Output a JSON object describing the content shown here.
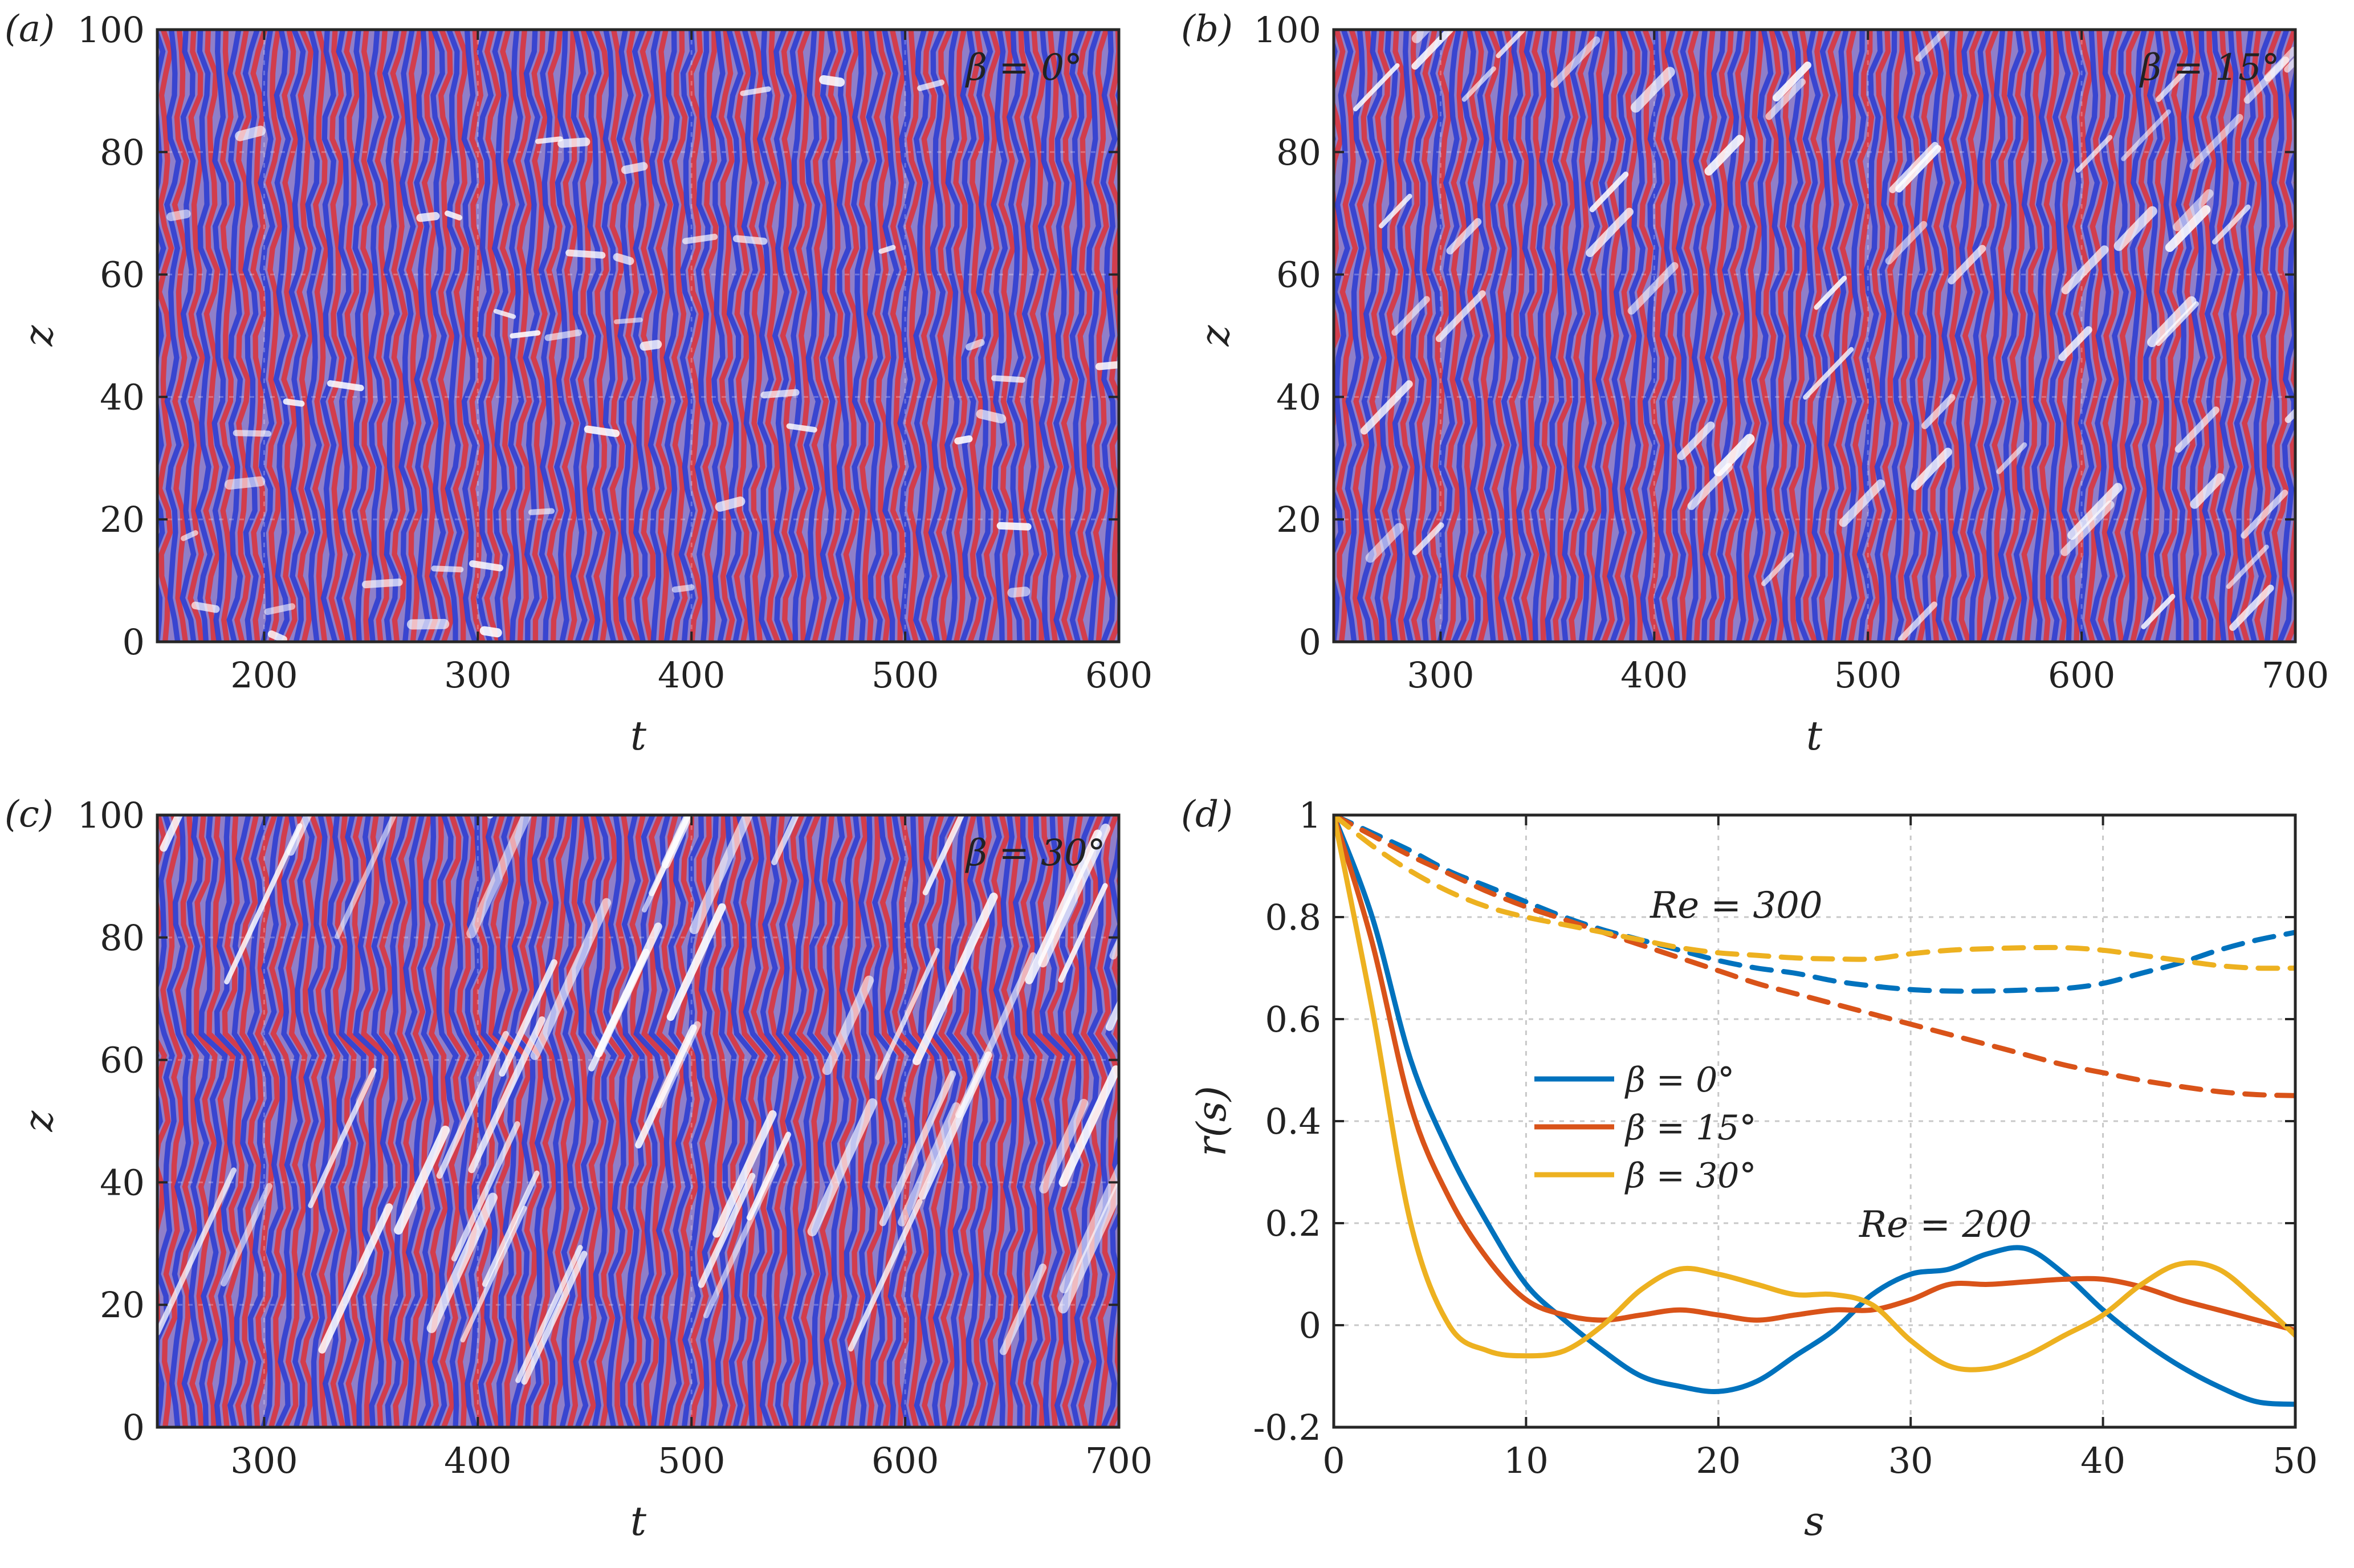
{
  "chart_data": [
    {
      "panel": "(a)",
      "type": "heatmap",
      "annotation": "β = 0°",
      "xlabel": "t",
      "ylabel": "z",
      "xlim": [
        150,
        600
      ],
      "ylim": [
        0,
        100
      ],
      "xticks": [
        200,
        300,
        400,
        500,
        600
      ],
      "yticks": [
        0,
        20,
        40,
        60,
        80,
        100
      ],
      "pattern": {
        "beta_deg": 0,
        "stripe_period": 7.3,
        "t0": 150
      }
    },
    {
      "panel": "(b)",
      "type": "heatmap",
      "annotation": "β = 15°",
      "xlabel": "t",
      "ylabel": "z",
      "xlim": [
        250,
        700
      ],
      "ylim": [
        0,
        100
      ],
      "xticks": [
        300,
        400,
        500,
        600,
        700
      ],
      "yticks": [
        0,
        20,
        40,
        60,
        80,
        100
      ],
      "pattern": {
        "beta_deg": 15,
        "stripe_period": 7.3,
        "t0": 250
      }
    },
    {
      "panel": "(c)",
      "type": "heatmap",
      "annotation": "β = 30°",
      "xlabel": "t",
      "ylabel": "z",
      "xlim": [
        250,
        700
      ],
      "ylim": [
        0,
        100
      ],
      "xticks": [
        300,
        400,
        500,
        600,
        700
      ],
      "yticks": [
        0,
        20,
        40,
        60,
        80,
        100
      ],
      "pattern": {
        "beta_deg": 30,
        "stripe_period": 7.3,
        "t0": 250
      }
    },
    {
      "panel": "(d)",
      "type": "line",
      "xlabel": "s",
      "ylabel": "r(s)",
      "xlim": [
        0,
        50
      ],
      "ylim": [
        -0.2,
        1
      ],
      "xticks": [
        0,
        10,
        20,
        30,
        40,
        50
      ],
      "yticks": [
        -0.2,
        0,
        0.2,
        0.4,
        0.6,
        0.8,
        1
      ],
      "grid": true,
      "annotations": [
        "Re = 300",
        "Re = 200"
      ],
      "legend": {
        "location": "center-left",
        "entries": [
          "β = 0°",
          "β = 15°",
          "β = 30°"
        ]
      },
      "colors": [
        "#0072BD",
        "#D95319",
        "#EDB120"
      ],
      "series": [
        {
          "name": "β = 0°",
          "Re": 200,
          "style": "solid",
          "color": "#0072BD",
          "x": [
            0,
            2,
            4,
            6,
            8,
            10,
            12,
            14,
            16,
            18,
            20,
            22,
            24,
            26,
            28,
            30,
            32,
            34,
            36,
            38,
            40,
            42,
            44,
            46,
            48,
            50
          ],
          "y": [
            1,
            0.8,
            0.52,
            0.34,
            0.2,
            0.08,
            0.01,
            -0.05,
            -0.1,
            -0.12,
            -0.13,
            -0.11,
            -0.06,
            -0.01,
            0.06,
            0.1,
            0.11,
            0.14,
            0.15,
            0.1,
            0.03,
            -0.03,
            -0.08,
            -0.12,
            -0.15,
            -0.155
          ]
        },
        {
          "name": "β = 15°",
          "Re": 200,
          "style": "solid",
          "color": "#D95319",
          "x": [
            0,
            2,
            4,
            6,
            8,
            10,
            12,
            14,
            16,
            18,
            20,
            22,
            24,
            26,
            28,
            30,
            32,
            34,
            36,
            38,
            40,
            42,
            44,
            46,
            48,
            50
          ],
          "y": [
            1,
            0.75,
            0.43,
            0.25,
            0.13,
            0.05,
            0.02,
            0.01,
            0.02,
            0.03,
            0.02,
            0.01,
            0.02,
            0.03,
            0.03,
            0.05,
            0.08,
            0.08,
            0.085,
            0.09,
            0.09,
            0.075,
            0.05,
            0.03,
            0.01,
            -0.01
          ]
        },
        {
          "name": "β = 30°",
          "Re": 200,
          "style": "solid",
          "color": "#EDB120",
          "x": [
            0,
            2,
            4,
            6,
            8,
            10,
            12,
            14,
            16,
            18,
            20,
            22,
            24,
            26,
            28,
            30,
            32,
            34,
            36,
            38,
            40,
            42,
            44,
            46,
            48,
            50
          ],
          "y": [
            1,
            0.62,
            0.2,
            0.0,
            -0.05,
            -0.06,
            -0.05,
            0.0,
            0.07,
            0.11,
            0.1,
            0.08,
            0.06,
            0.06,
            0.04,
            -0.03,
            -0.08,
            -0.085,
            -0.06,
            -0.02,
            0.02,
            0.08,
            0.12,
            0.11,
            0.05,
            -0.02
          ]
        },
        {
          "name": "β = 0°",
          "Re": 300,
          "style": "dashed",
          "color": "#0072BD",
          "x": [
            0,
            2,
            4,
            6,
            8,
            10,
            12,
            14,
            16,
            18,
            20,
            22,
            24,
            26,
            28,
            30,
            32,
            34,
            36,
            38,
            40,
            42,
            44,
            46,
            48,
            50
          ],
          "y": [
            1,
            0.965,
            0.93,
            0.89,
            0.86,
            0.83,
            0.8,
            0.775,
            0.755,
            0.735,
            0.715,
            0.7,
            0.69,
            0.675,
            0.665,
            0.658,
            0.655,
            0.655,
            0.657,
            0.66,
            0.67,
            0.69,
            0.71,
            0.735,
            0.755,
            0.77
          ]
        },
        {
          "name": "β = 15°",
          "Re": 300,
          "style": "dashed",
          "color": "#D95319",
          "x": [
            0,
            2,
            4,
            6,
            8,
            10,
            12,
            14,
            16,
            18,
            20,
            22,
            24,
            26,
            28,
            30,
            32,
            34,
            36,
            38,
            40,
            42,
            44,
            46,
            48,
            50
          ],
          "y": [
            1,
            0.96,
            0.92,
            0.885,
            0.85,
            0.82,
            0.795,
            0.77,
            0.745,
            0.72,
            0.695,
            0.67,
            0.65,
            0.63,
            0.61,
            0.59,
            0.57,
            0.55,
            0.53,
            0.51,
            0.495,
            0.48,
            0.468,
            0.458,
            0.452,
            0.45
          ]
        },
        {
          "name": "β = 30°",
          "Re": 300,
          "style": "dashed",
          "color": "#EDB120",
          "x": [
            0,
            2,
            4,
            6,
            8,
            10,
            12,
            14,
            16,
            18,
            20,
            22,
            24,
            26,
            28,
            30,
            32,
            34,
            36,
            38,
            40,
            42,
            44,
            46,
            48,
            50
          ],
          "y": [
            1,
            0.94,
            0.89,
            0.85,
            0.82,
            0.8,
            0.785,
            0.77,
            0.755,
            0.74,
            0.73,
            0.725,
            0.72,
            0.718,
            0.718,
            0.728,
            0.735,
            0.738,
            0.74,
            0.74,
            0.735,
            0.725,
            0.715,
            0.705,
            0.7,
            0.7
          ]
        }
      ]
    }
  ]
}
